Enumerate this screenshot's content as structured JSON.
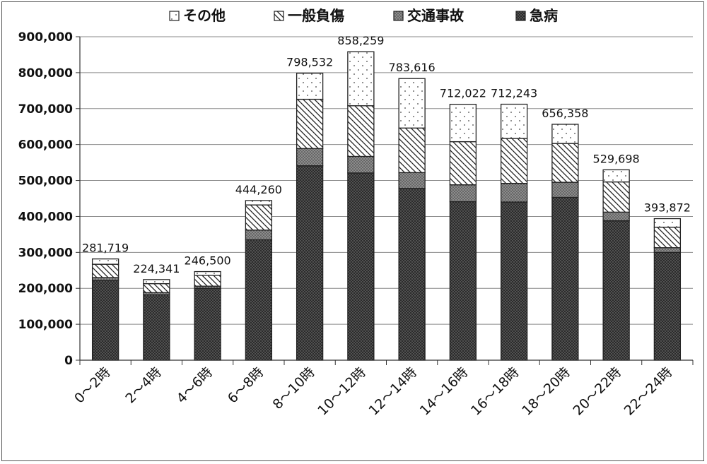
{
  "chart_data": {
    "type": "bar",
    "stacked": true,
    "categories": [
      "0～2時",
      "2～4時",
      "4～6時",
      "6～8時",
      "8～10時",
      "10～12時",
      "12～14時",
      "14～16時",
      "16～18時",
      "18～20時",
      "20～22時",
      "22～24時"
    ],
    "series": [
      {
        "name": "急病",
        "pattern": "dense-dots",
        "values": [
          222000,
          182000,
          200000,
          335000,
          541000,
          521000,
          478000,
          441000,
          440000,
          453000,
          388000,
          300000
        ]
      },
      {
        "name": "交通事故",
        "pattern": "medium-dots",
        "values": [
          8000,
          6000,
          6000,
          27000,
          48000,
          46000,
          44000,
          47000,
          52000,
          42000,
          24000,
          13000
        ]
      },
      {
        "name": "一般負傷",
        "pattern": "diagonal-hatch",
        "values": [
          37000,
          25000,
          30000,
          70000,
          137000,
          141000,
          124000,
          120000,
          125000,
          108000,
          84000,
          57000
        ]
      },
      {
        "name": "その他",
        "pattern": "sparse-dots",
        "values": [
          14719,
          11341,
          10500,
          12260,
          72532,
          150259,
          137616,
          104022,
          95243,
          53358,
          33698,
          23872
        ]
      }
    ],
    "totals": [
      281719,
      224341,
      246500,
      444260,
      798532,
      858259,
      783616,
      712022,
      712243,
      656358,
      529698,
      393872
    ],
    "total_labels": [
      "281,719",
      "224,341",
      "246,500",
      "444,260",
      "798,532",
      "858,259",
      "783,616",
      "712,022",
      "712,243",
      "656,358",
      "529,698",
      "393,872"
    ],
    "ylim": [
      0,
      900000
    ],
    "yticks": [
      "0",
      "100,000",
      "200,000",
      "300,000",
      "400,000",
      "500,000",
      "600,000",
      "700,000",
      "800,000",
      "900,000"
    ],
    "grid": true,
    "legend_position": "top",
    "legend_order": [
      "その他",
      "一般負傷",
      "交通事故",
      "急病"
    ]
  }
}
